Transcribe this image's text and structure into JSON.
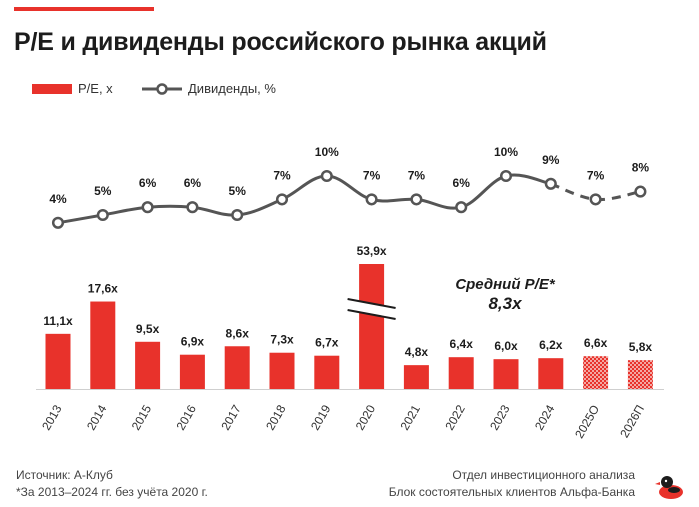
{
  "header": {
    "title": "P/E и дивиденды российского рынка акций"
  },
  "legend": {
    "bar_label": "P/E, х",
    "line_label": "Дивиденды, %"
  },
  "chart_data": {
    "type": "bar+line",
    "title": "P/E и дивиденды российского рынка акций",
    "categories": [
      "2013",
      "2014",
      "2015",
      "2016",
      "2017",
      "2018",
      "2019",
      "2020",
      "2021",
      "2022",
      "2023",
      "2024",
      "2025О",
      "2026П"
    ],
    "series": [
      {
        "name": "P/E, х",
        "type": "bar",
        "values": [
          11.1,
          17.6,
          9.5,
          6.9,
          8.6,
          7.3,
          6.7,
          53.9,
          4.8,
          6.4,
          6.0,
          6.2,
          6.6,
          5.8
        ],
        "labels": [
          "11,1x",
          "17,6x",
          "9,5x",
          "6,9x",
          "8,6x",
          "7,3x",
          "6,7x",
          "53,9x",
          "4,8x",
          "6,4x",
          "6,0x",
          "6,2x",
          "6,6x",
          "5,8x"
        ],
        "forecast_from_index": 12,
        "broken_axis_index": 7
      },
      {
        "name": "Дивиденды, %",
        "type": "line",
        "values": [
          4,
          5,
          6,
          6,
          5,
          7,
          10,
          7,
          7,
          6,
          10,
          9,
          7,
          8
        ],
        "labels": [
          "4%",
          "5%",
          "6%",
          "6%",
          "5%",
          "7%",
          "10%",
          "7%",
          "7%",
          "6%",
          "10%",
          "9%",
          "7%",
          "8%"
        ],
        "forecast_from_index": 12
      }
    ],
    "annotation": {
      "line1": "Средний P/E*",
      "line2": "8,3x"
    },
    "colors": {
      "bar": "#e8322b",
      "bar_forecast": "#f08a84",
      "line": "#555555"
    }
  },
  "footer": {
    "source": "Источник: А-Клуб",
    "note": "*За 2013–2024 гг. без учёта 2020 г.",
    "dept_line1": "Отдел инвестиционного анализа",
    "dept_line2": "Блок состоятельных клиентов Альфа-Банка",
    "logo_icon": "duck-logo-icon"
  }
}
